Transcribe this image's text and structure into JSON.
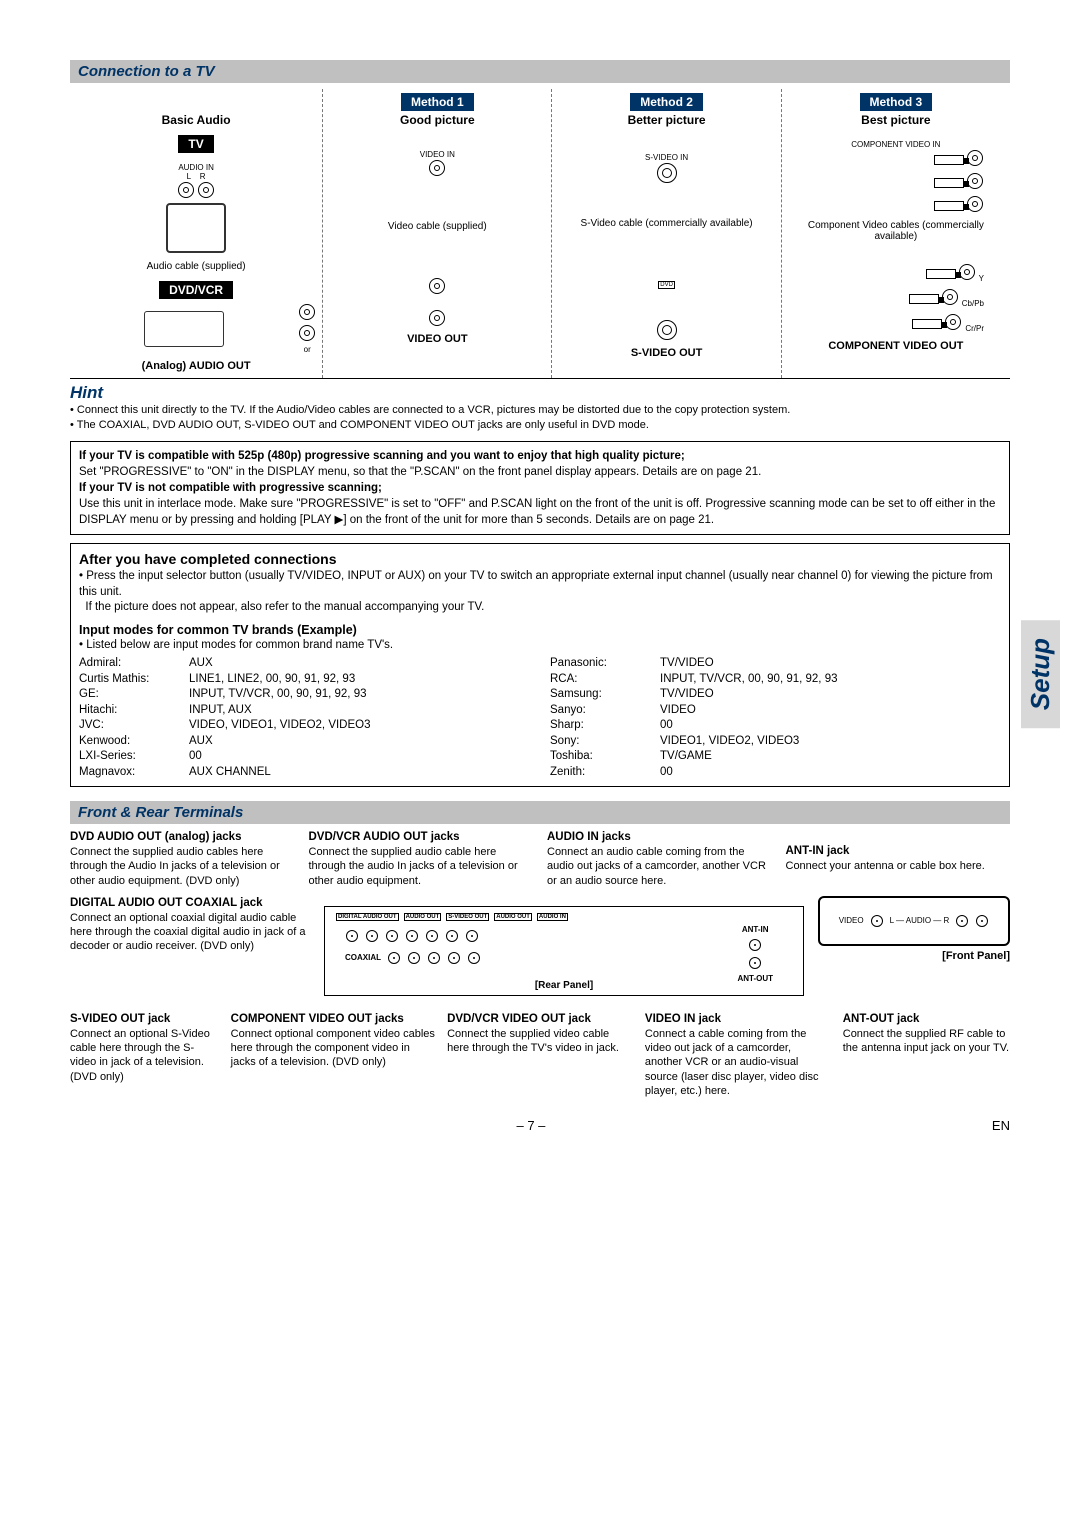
{
  "sideTab": "Setup",
  "section1": {
    "title": "Connection to a TV",
    "cols": [
      {
        "method": "",
        "sub": "Basic Audio",
        "cable": "Audio cable (supplied)",
        "out": "(Analog) AUDIO OUT"
      },
      {
        "method": "Method 1",
        "sub": "Good picture",
        "cable": "Video cable (supplied)",
        "out": "VIDEO OUT"
      },
      {
        "method": "Method 2",
        "sub": "Better picture",
        "cable": "S-Video cable (commercially available)",
        "out": "S-VIDEO OUT"
      },
      {
        "method": "Method 3",
        "sub": "Best picture",
        "cable": "Component Video cables (commercially available)",
        "out": "COMPONENT VIDEO OUT"
      }
    ],
    "tvLabel": "TV",
    "dvdLabel": "DVD/VCR",
    "or": "or",
    "audioIn": "AUDIO IN",
    "videoIn": "VIDEO IN",
    "sVideoIn": "S-VIDEO IN",
    "compIn": "COMPONENT VIDEO IN"
  },
  "hint": {
    "title": "Hint",
    "bullets": [
      "Connect this unit directly to the TV. If the Audio/Video cables are connected to a VCR, pictures may be distorted due to the copy protection system.",
      "The COAXIAL, DVD AUDIO OUT, S-VIDEO OUT and COMPONENT VIDEO OUT jacks are only useful in DVD mode."
    ]
  },
  "infoBox": {
    "p1b": "If your TV is compatible with 525p (480p) progressive scanning and you want to enjoy that high quality picture;",
    "p1": "Set \"PROGRESSIVE\" to \"ON\" in the DISPLAY menu, so that the \"P.SCAN\" on the front panel display appears. Details are on page 21.",
    "p2b": "If your TV is not compatible with progressive scanning;",
    "p2": "Use this unit in interlace mode. Make sure \"PROGRESSIVE\" is set to \"OFF\" and P.SCAN light on the front of the unit is off. Progressive scanning mode can be set to off either in the DISPLAY menu or by pressing and holding [PLAY ▶] on the front of the unit for more than 5 seconds. Details are on page 21."
  },
  "after": {
    "title": "After you have completed connections",
    "b1": "Press the input selector button (usually TV/VIDEO, INPUT or AUX) on your TV to switch an appropriate external input channel (usually near channel 0) for viewing the picture from this unit.",
    "b2": "If the picture does not appear, also refer to the manual accompanying your TV.",
    "modesTitle": "Input modes for common TV brands (Example)",
    "modesSub": "Listed below are input modes for common brand name TV's.",
    "brandsLeft": [
      {
        "n": "Admiral:",
        "v": "AUX"
      },
      {
        "n": "Curtis Mathis:",
        "v": "LINE1, LINE2, 00, 90, 91, 92, 93"
      },
      {
        "n": "GE:",
        "v": "INPUT, TV/VCR, 00, 90, 91, 92, 93"
      },
      {
        "n": "Hitachi:",
        "v": "INPUT, AUX"
      },
      {
        "n": "JVC:",
        "v": "VIDEO, VIDEO1, VIDEO2, VIDEO3"
      },
      {
        "n": "Kenwood:",
        "v": "AUX"
      },
      {
        "n": "LXI-Series:",
        "v": "00"
      },
      {
        "n": "Magnavox:",
        "v": "AUX CHANNEL"
      }
    ],
    "brandsRight": [
      {
        "n": "Panasonic:",
        "v": "TV/VIDEO"
      },
      {
        "n": "RCA:",
        "v": "INPUT, TV/VCR, 00, 90, 91, 92, 93"
      },
      {
        "n": "Samsung:",
        "v": "TV/VIDEO"
      },
      {
        "n": "Sanyo:",
        "v": "VIDEO"
      },
      {
        "n": "Sharp:",
        "v": "00"
      },
      {
        "n": "Sony:",
        "v": "VIDEO1, VIDEO2, VIDEO3"
      },
      {
        "n": "Toshiba:",
        "v": "TV/GAME"
      },
      {
        "n": "Zenith:",
        "v": "00"
      }
    ]
  },
  "section2": {
    "title": "Front & Rear Terminals",
    "top": [
      {
        "t": "DVD AUDIO OUT (analog) jacks",
        "d": "Connect the supplied audio cables here through the Audio In jacks of a television or other audio equipment. (DVD only)"
      },
      {
        "t": "DVD/VCR AUDIO OUT jacks",
        "d": "Connect the supplied audio cable here through the audio In jacks of a television or other audio equipment."
      },
      {
        "t": "AUDIO IN jacks",
        "d": "Connect an audio cable coming from the audio out jacks of a camcorder, another VCR or an audio source here."
      },
      {
        "t": "ANT-IN jack",
        "d": "Connect your antenna or cable box here."
      }
    ],
    "mid": {
      "t": "DIGITAL AUDIO OUT COAXIAL jack",
      "d": "Connect an optional coaxial digital audio cable here through the coaxial digital audio in jack of a decoder or audio receiver. (DVD only)"
    },
    "rearLabel": "[Rear Panel]",
    "frontLabel": "[Front Panel]",
    "bottom": [
      {
        "t": "S-VIDEO OUT jack",
        "d": "Connect an optional S-Video cable here through the S-video in jack of a television. (DVD only)"
      },
      {
        "t": "COMPONENT VIDEO OUT jacks",
        "d": "Connect optional component video cables here through the component video in jacks of a television. (DVD only)"
      },
      {
        "t": "DVD/VCR VIDEO OUT jack",
        "d": "Connect the supplied video cable here through the TV's video in jack."
      },
      {
        "t": "VIDEO IN jack",
        "d": "Connect a cable coming from the video out jack of a camcorder, another VCR or an audio-visual source (laser disc player, video disc player, etc.) here."
      },
      {
        "t": "ANT-OUT jack",
        "d": "Connect the supplied RF cable to the antenna input jack on your TV."
      }
    ]
  },
  "footer": {
    "page": "– 7 –",
    "code": "EN"
  }
}
